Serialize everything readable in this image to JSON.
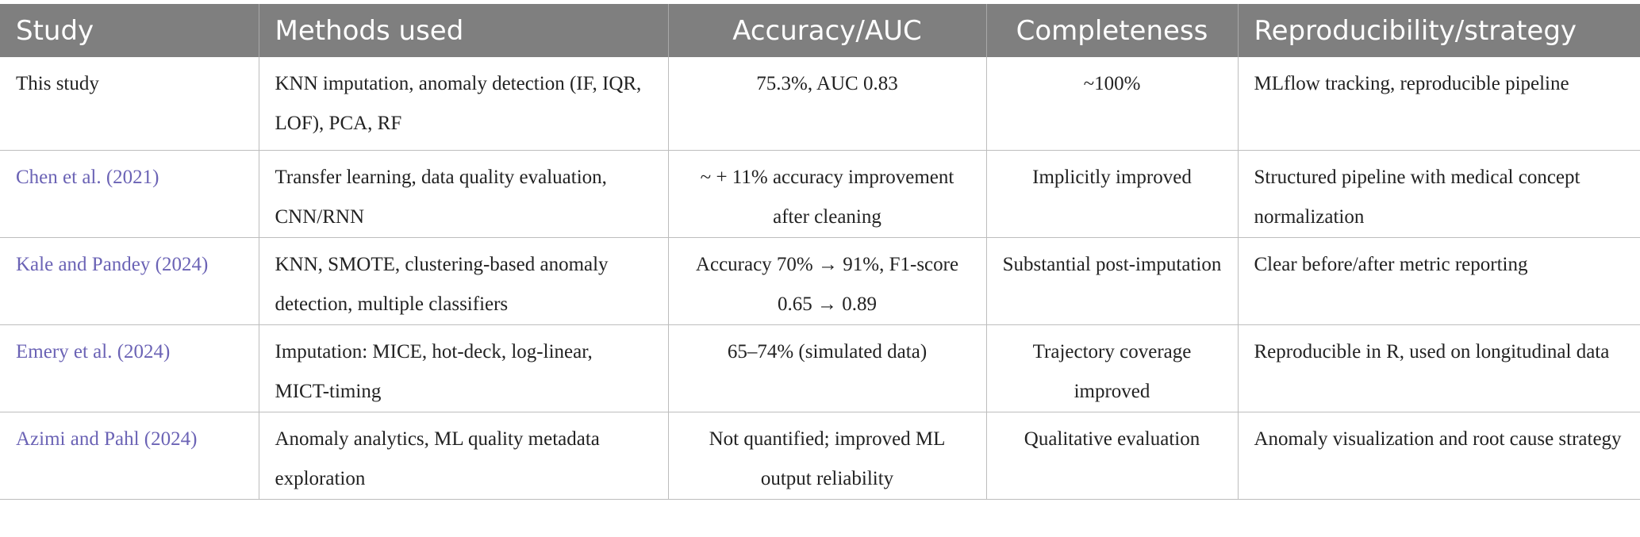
{
  "table": {
    "headers": [
      "Study",
      "Methods used",
      "Accuracy/AUC",
      "Completeness",
      "Reproducibility/strategy"
    ],
    "rows": [
      {
        "study": "This study",
        "methods": "KNN imputation, anomaly detection (IF, IQR, LOF), PCA, RF",
        "accuracy": "75.3%, AUC 0.83",
        "completeness": "~100%",
        "reproducibility": "MLflow tracking, reproducible pipeline"
      },
      {
        "study": "Chen et al. (2021)",
        "methods": "Transfer learning, data quality evaluation, CNN/RNN",
        "accuracy": "~ + 11% accuracy improvement after cleaning",
        "completeness": "Implicitly improved",
        "reproducibility": "Structured pipeline with medical concept normalization"
      },
      {
        "study": "Kale and Pandey (2024)",
        "methods": "KNN, SMOTE, clustering-based anomaly detection, multiple classifiers",
        "accuracy": "Accuracy 70% → 91%, F1-score 0.65 → 0.89",
        "completeness": "Substantial post-imputation",
        "reproducibility": "Clear before/after metric reporting"
      },
      {
        "study": "Emery et al. (2024)",
        "methods": "Imputation: MICE, hot-deck, log-linear, MICT-timing",
        "accuracy": "65–74% (simulated data)",
        "completeness": "Trajectory coverage improved",
        "reproducibility": "Reproducible in R, used on longitudinal data"
      },
      {
        "study": "Azimi and Pahl (2024)",
        "methods": "Anomaly analytics, ML quality metadata exploration",
        "accuracy": "Not quantified; improved ML output reliability",
        "completeness": "Qualitative evaluation",
        "reproducibility": "Anomaly visualization and root cause strategy"
      }
    ]
  },
  "colors": {
    "header_bg": "#7f7f7f",
    "header_text": "#ffffff",
    "link_text": "#6b63b5",
    "body_text": "#222222",
    "border": "#bdbdbd"
  }
}
